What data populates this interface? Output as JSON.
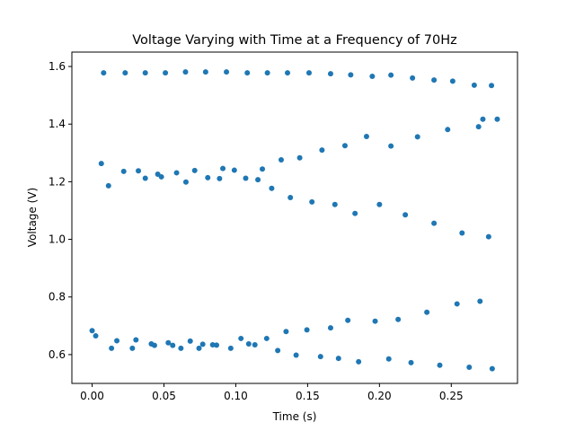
{
  "chart_data": {
    "type": "scatter",
    "title": "Voltage Varying with Time at a Frequency of 70Hz",
    "xlabel": "Time (s)",
    "ylabel": "Voltage (V)",
    "xlim": [
      -0.0141,
      0.2961
    ],
    "ylim": [
      0.5,
      1.65
    ],
    "xticks": [
      0.0,
      0.05,
      0.1,
      0.15,
      0.2,
      0.25
    ],
    "xtick_labels": [
      "0.00",
      "0.05",
      "0.10",
      "0.15",
      "0.20",
      "0.25"
    ],
    "yticks": [
      0.6,
      0.8,
      1.0,
      1.2,
      1.4,
      1.6
    ],
    "ytick_labels": [
      "0.6",
      "0.8",
      "1.0",
      "1.2",
      "1.4",
      "1.6"
    ],
    "grid": false,
    "legend": false,
    "marker_color": "#1f77b4",
    "series": [
      {
        "x": [
          0.0,
          0.0025,
          0.0064,
          0.0114,
          0.0135,
          0.0172,
          0.022,
          0.028,
          0.0305,
          0.0322,
          0.037,
          0.0412,
          0.0434,
          0.0457,
          0.0482,
          0.053,
          0.0561,
          0.0588,
          0.0618,
          0.0653,
          0.0683,
          0.0714,
          0.0744,
          0.077,
          0.0805,
          0.0839,
          0.0866,
          0.0887,
          0.091,
          0.0965,
          0.099,
          0.1036,
          0.1069,
          0.109,
          0.1133,
          0.1154,
          0.1185,
          0.1215,
          0.125,
          0.1292,
          0.1316,
          0.135,
          0.138,
          0.142,
          0.1445,
          0.1495,
          0.153,
          0.159,
          0.16,
          0.166,
          0.169,
          0.1715,
          0.176,
          0.178,
          0.183,
          0.1855,
          0.191,
          0.197,
          0.2,
          0.2065,
          0.208,
          0.213,
          0.218,
          0.222,
          0.2265,
          0.233,
          0.238,
          0.242,
          0.2475,
          0.254,
          0.2575,
          0.2625,
          0.269,
          0.27,
          0.276,
          0.2785
        ],
        "y": [
          0.683,
          0.665,
          1.263,
          1.186,
          0.622,
          0.648,
          1.236,
          0.622,
          0.651,
          1.238,
          1.212,
          0.637,
          0.632,
          1.226,
          1.217,
          0.641,
          0.632,
          1.231,
          0.622,
          1.199,
          0.647,
          1.239,
          0.622,
          0.636,
          1.214,
          0.634,
          0.633,
          1.211,
          1.246,
          0.622,
          1.24,
          0.656,
          1.212,
          0.637,
          0.634,
          1.207,
          1.244,
          0.656,
          1.177,
          0.614,
          1.276,
          0.68,
          1.145,
          0.598,
          1.283,
          0.686,
          1.13,
          0.593,
          1.31,
          0.693,
          1.121,
          0.587,
          1.325,
          0.719,
          1.09,
          0.575,
          1.357,
          0.716,
          1.121,
          0.585,
          1.324,
          0.722,
          1.085,
          0.572,
          1.356,
          0.747,
          1.056,
          0.563,
          1.381,
          0.776,
          1.022,
          0.556,
          1.391,
          0.785,
          1.009,
          0.551
        ]
      },
      {
        "x": [
          0.008,
          0.023,
          0.037,
          0.051,
          0.065,
          0.079,
          0.0935,
          0.108,
          0.122,
          0.136,
          0.151,
          0.166,
          0.18,
          0.195,
          0.208,
          0.223,
          0.238,
          0.251,
          0.266,
          0.272,
          0.278,
          0.282
        ],
        "y": [
          1.578,
          1.578,
          1.578,
          1.578,
          1.581,
          1.581,
          1.581,
          1.578,
          1.578,
          1.578,
          1.578,
          1.575,
          1.571,
          1.566,
          1.57,
          1.56,
          1.553,
          1.549,
          1.535,
          1.417,
          1.534,
          1.417
        ]
      }
    ]
  }
}
